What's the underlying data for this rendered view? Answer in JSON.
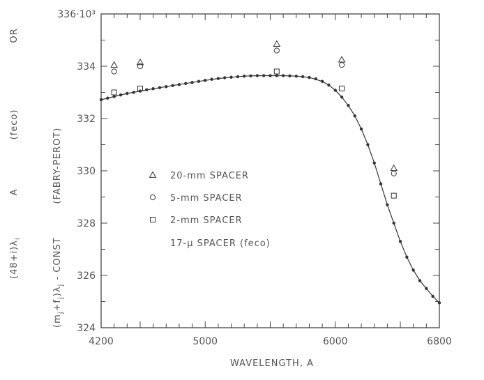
{
  "chart_data": {
    "type": "scatter",
    "title": "",
    "xlabel": "WAVELENGTH,  A",
    "ylabel_outer": [
      "(48+i)λ",
      "A",
      "(feco)",
      "OR"
    ],
    "ylabel_outer_sub": "i",
    "ylabel_inner": [
      "(m",
      "+f",
      ")λ",
      " - CONST",
      "(FABRY-PEROT)"
    ],
    "ylabel_inner_subs": [
      "j",
      "j",
      "j"
    ],
    "xlim": [
      4200,
      6800
    ],
    "ylim": [
      324,
      336
    ],
    "x_ticks": [
      4200,
      5000,
      6000,
      6800
    ],
    "x_tick_labels": [
      "4200",
      "5000",
      "6000",
      "6800"
    ],
    "y_ticks": [
      324,
      326,
      328,
      330,
      332,
      334,
      336
    ],
    "y_tick_labels": [
      "324",
      "326",
      "328",
      "330",
      "332",
      "334",
      "336·10³"
    ],
    "legend_position": "center-left",
    "series": [
      {
        "name": "20-mm SPACER",
        "marker": "triangle",
        "x": [
          4300,
          4500,
          5550,
          6050,
          6450
        ],
        "y": [
          334.05,
          334.15,
          334.85,
          334.25,
          330.1
        ]
      },
      {
        "name": "5-mm SPACER",
        "marker": "circle",
        "x": [
          4300,
          4500,
          5550,
          6050,
          6450
        ],
        "y": [
          333.8,
          334.0,
          334.6,
          334.05,
          329.9
        ]
      },
      {
        "name": "2-mm SPACER",
        "marker": "square",
        "x": [
          4300,
          4500,
          5550,
          6050,
          6450
        ],
        "y": [
          333.0,
          333.15,
          333.8,
          333.15,
          329.05
        ]
      },
      {
        "name": "17-μ SPACER (feco)",
        "marker": "dot",
        "x": [
          4200,
          4250,
          4300,
          4350,
          4400,
          4450,
          4500,
          4550,
          4600,
          4650,
          4700,
          4750,
          4800,
          4850,
          4900,
          4950,
          5000,
          5050,
          5100,
          5150,
          5200,
          5250,
          5300,
          5350,
          5400,
          5450,
          5500,
          5550,
          5600,
          5650,
          5700,
          5750,
          5800,
          5850,
          5900,
          5950,
          6000,
          6050,
          6100,
          6150,
          6200,
          6250,
          6300,
          6350,
          6400,
          6450,
          6500,
          6550,
          6600,
          6650,
          6700,
          6750,
          6800
        ],
        "y": [
          332.72,
          332.78,
          332.84,
          332.9,
          332.96,
          333.0,
          333.05,
          333.1,
          333.14,
          333.18,
          333.22,
          333.26,
          333.3,
          333.34,
          333.38,
          333.42,
          333.46,
          333.5,
          333.53,
          333.56,
          333.58,
          333.6,
          333.62,
          333.63,
          333.64,
          333.64,
          333.64,
          333.64,
          333.64,
          333.63,
          333.62,
          333.6,
          333.57,
          333.52,
          333.42,
          333.28,
          333.08,
          332.82,
          332.5,
          332.1,
          331.6,
          331.0,
          330.3,
          329.5,
          328.7,
          328.0,
          327.3,
          326.7,
          326.2,
          325.8,
          325.5,
          325.2,
          324.95
        ]
      }
    ],
    "curve": {
      "x": [
        4200,
        4300,
        4400,
        4500,
        4600,
        4700,
        4800,
        4900,
        5000,
        5100,
        5200,
        5300,
        5400,
        5500,
        5600,
        5700,
        5800,
        5900,
        5950,
        6000,
        6050,
        6100,
        6150,
        6200,
        6250,
        6300,
        6350,
        6400,
        6450,
        6500,
        6550,
        6600,
        6650,
        6700,
        6750,
        6800
      ],
      "y": [
        332.72,
        332.84,
        332.96,
        333.05,
        333.14,
        333.22,
        333.3,
        333.38,
        333.46,
        333.53,
        333.58,
        333.62,
        333.64,
        333.64,
        333.64,
        333.62,
        333.57,
        333.42,
        333.28,
        333.08,
        332.82,
        332.5,
        332.1,
        331.6,
        331.0,
        330.3,
        329.5,
        328.7,
        328.0,
        327.3,
        326.7,
        326.2,
        325.8,
        325.5,
        325.2,
        324.95
      ]
    }
  }
}
